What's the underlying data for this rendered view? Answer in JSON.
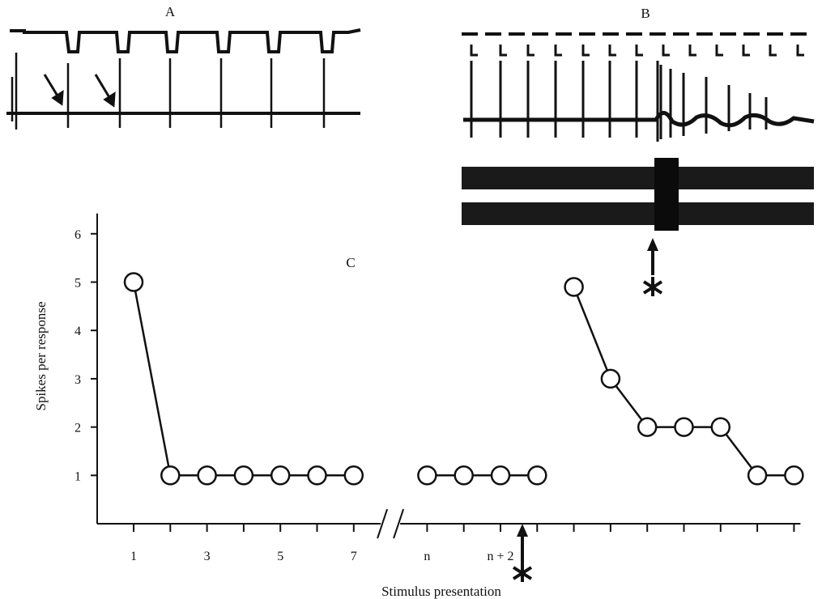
{
  "panels": {
    "a_label": "A",
    "b_label": "B",
    "c_label": "C"
  },
  "chart_data": {
    "type": "line",
    "title": "",
    "xlabel": "Stimulus presentation",
    "ylabel": "Spikes per response",
    "ylim": [
      0,
      6
    ],
    "yticks": [
      "1",
      "2",
      "3",
      "4",
      "5",
      "6"
    ],
    "xtick_labels": [
      {
        "label": "1",
        "x": 1
      },
      {
        "label": "3",
        "x": 3
      },
      {
        "label": "5",
        "x": 5
      },
      {
        "label": "7",
        "x": 7
      },
      {
        "label": "n",
        "x": 9
      },
      {
        "label": "n + 2",
        "x": 11
      }
    ],
    "axis_break_after": 7,
    "stimulus_marker_after": 11,
    "marker_symbol": "asterisk-arrow-icon",
    "grid": false,
    "legend": "none",
    "segments": [
      {
        "x": [
          1,
          2,
          3,
          4,
          5,
          6,
          7
        ],
        "y": [
          5,
          1,
          1,
          1,
          1,
          1,
          1
        ]
      },
      {
        "x": [
          9,
          10,
          11,
          12
        ],
        "y": [
          1,
          1,
          1,
          1
        ]
      },
      {
        "x": [
          13,
          14,
          15,
          16,
          17,
          18,
          19
        ],
        "y": [
          4.9,
          3,
          2,
          2,
          2,
          1,
          1
        ]
      }
    ]
  }
}
